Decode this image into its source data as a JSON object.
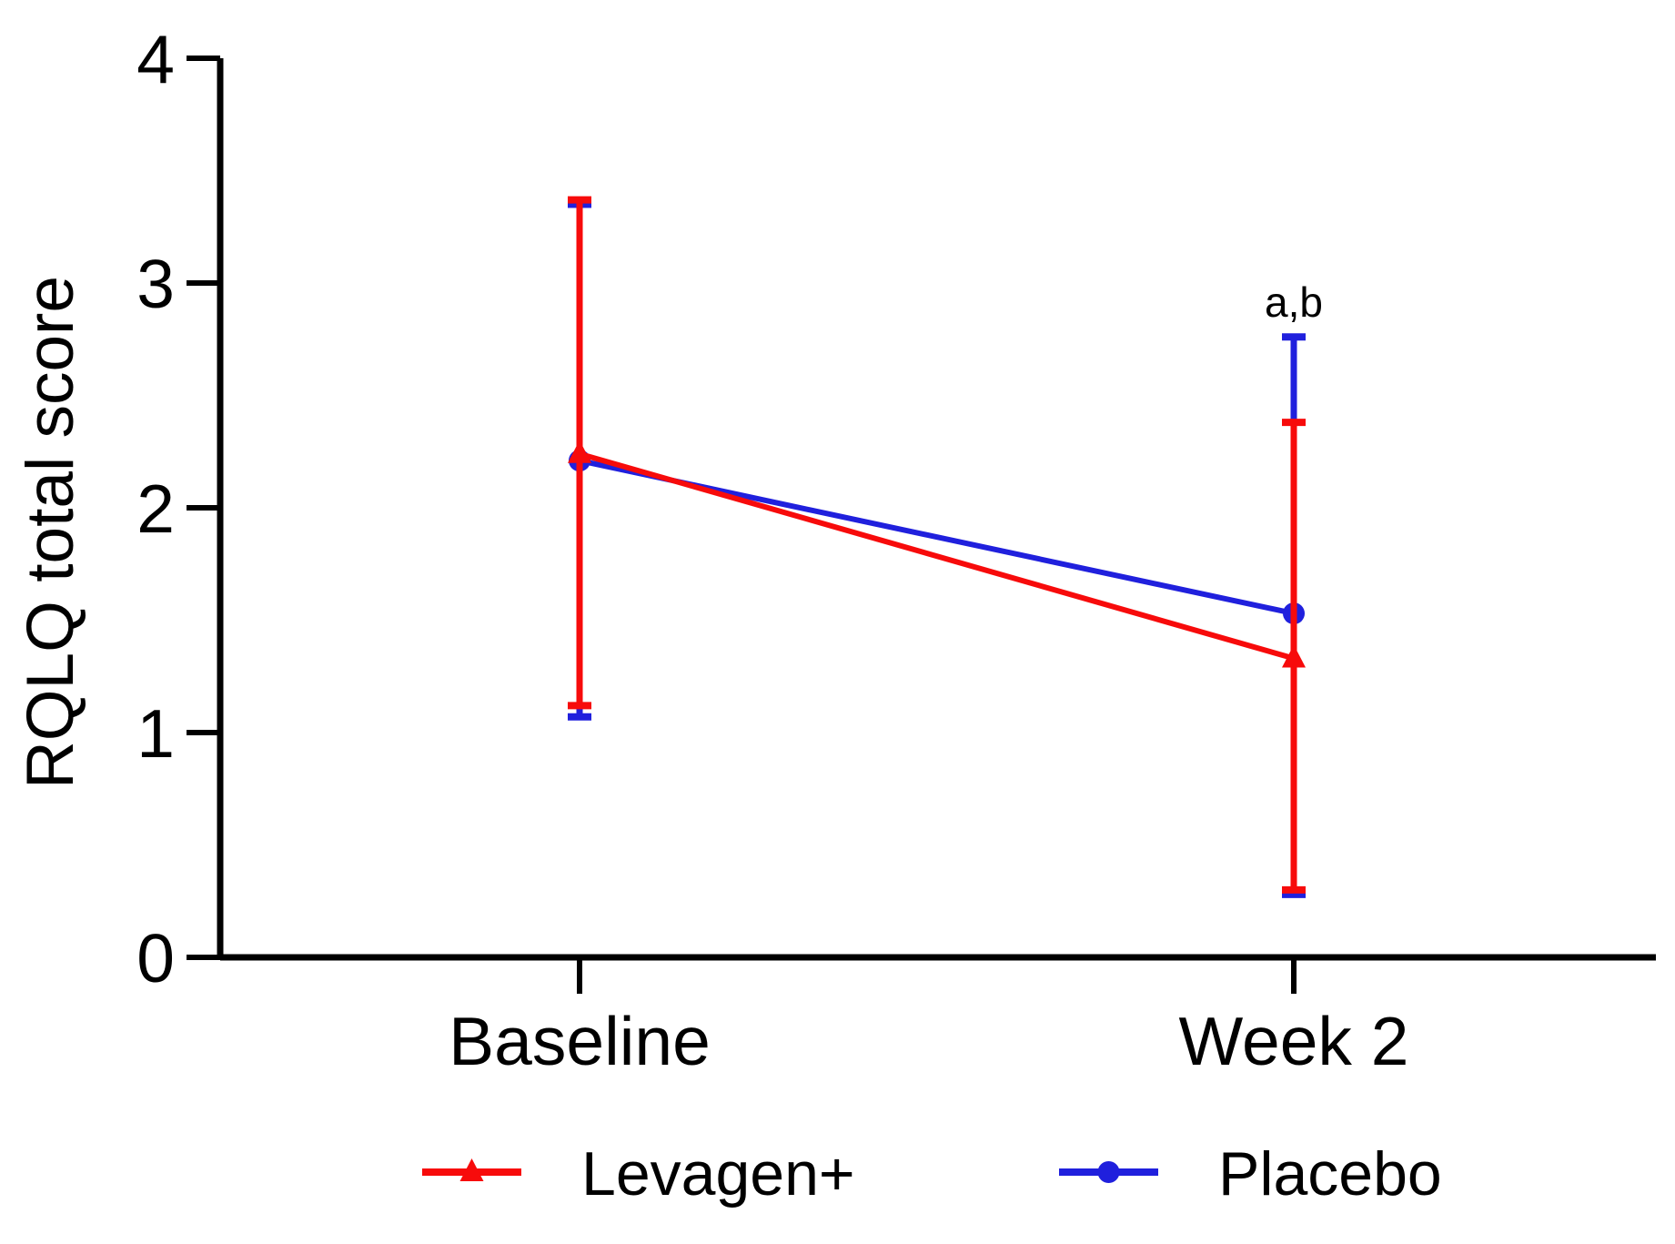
{
  "figure": {
    "background": "#ffffff",
    "axis_color": "#000000",
    "text_color": "#000000"
  },
  "chart_data": {
    "type": "line",
    "title": "",
    "xlabel": "",
    "ylabel": "RQLQ total score",
    "categories": [
      "Baseline",
      "Week 2"
    ],
    "ylim": [
      0,
      4
    ],
    "yticks": [
      "4",
      "3",
      "2",
      "1",
      "0"
    ],
    "ytick_values": [
      4,
      3,
      2,
      1,
      0
    ],
    "grid": false,
    "error_bars": "sd",
    "legend_position": "bottom",
    "series": [
      {
        "name": "Levagen+",
        "color": "#f70b0b",
        "marker": "triangle",
        "values": [
          2.24,
          1.33
        ],
        "error_upper": [
          3.37,
          2.38
        ],
        "error_lower": [
          1.12,
          0.3
        ]
      },
      {
        "name": "Placebo",
        "color": "#2020dd",
        "marker": "circle",
        "values": [
          2.21,
          1.53
        ],
        "error_upper": [
          3.35,
          2.76
        ],
        "error_lower": [
          1.07,
          0.28
        ]
      }
    ],
    "annotations": [
      {
        "text": "a,b",
        "category_index": 1,
        "y": 2.85
      }
    ]
  }
}
